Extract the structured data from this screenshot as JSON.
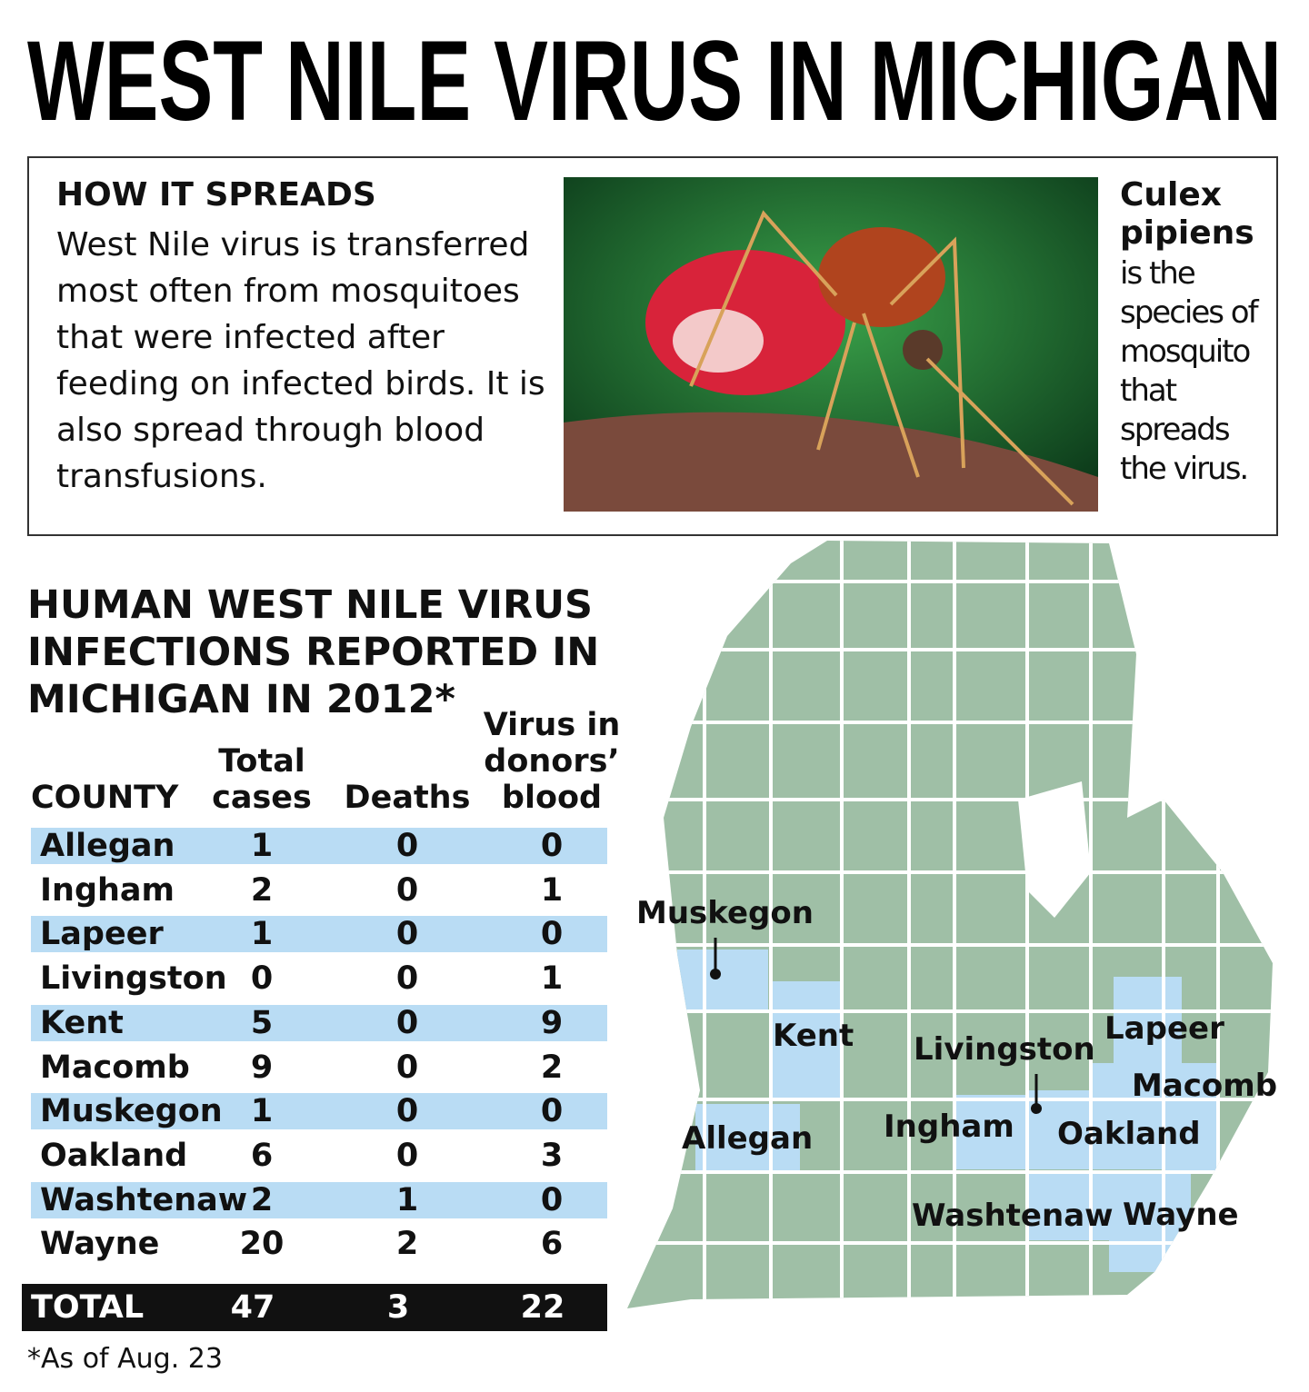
{
  "title": "WEST NILE VIRUS IN MICHIGAN",
  "spreads": {
    "heading": "HOW IT SPREADS",
    "text": "West Nile virus is transferred most often from mosquitoes that were infected after feeding on infected birds. It is also spread through blood transfusions."
  },
  "photo_caption": {
    "species": "Culex pipiens",
    "text": "is the species of mosquito that spreads the virus."
  },
  "table": {
    "title": "HUMAN WEST NILE VIRUS INFECTIONS REPORTED IN MICHIGAN IN 2012*",
    "columns": [
      "COUNTY",
      "Total cases",
      "Deaths",
      "Virus in donors’ blood"
    ],
    "rows": [
      [
        "Allegan",
        1,
        0,
        0
      ],
      [
        "Ingham",
        2,
        0,
        1
      ],
      [
        "Lapeer",
        1,
        0,
        0
      ],
      [
        "Livingston",
        0,
        0,
        1
      ],
      [
        "Kent",
        5,
        0,
        9
      ],
      [
        "Macomb",
        9,
        0,
        2
      ],
      [
        "Muskegon",
        1,
        0,
        0
      ],
      [
        "Oakland",
        6,
        0,
        3
      ],
      [
        "Washtenaw",
        2,
        1,
        0
      ],
      [
        "Wayne",
        20,
        2,
        6
      ]
    ],
    "total": [
      "TOTAL",
      47,
      3,
      22
    ]
  },
  "footnote": "*As of Aug. 23",
  "map": {
    "labels": [
      "Muskegon",
      "Kent",
      "Livingston",
      "Lapeer",
      "Macomb",
      "Allegan",
      "Ingham",
      "Oakland",
      "Washtenaw",
      "Wayne"
    ]
  }
}
